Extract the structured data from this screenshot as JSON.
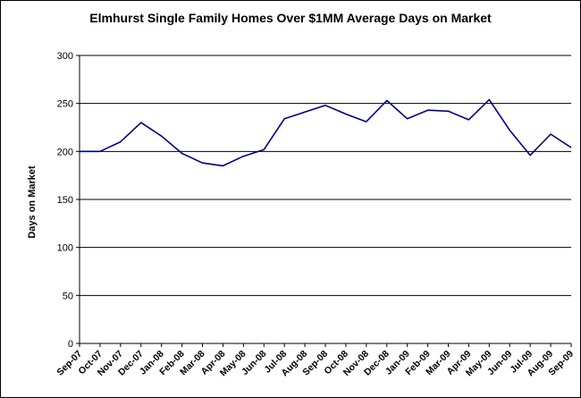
{
  "chart_data": {
    "type": "line",
    "title": "Elmhurst Single Family Homes Over $1MM Average Days on Market",
    "xlabel": "",
    "ylabel": "Days on Market",
    "ylim": [
      0,
      300
    ],
    "yticks": [
      0,
      50,
      100,
      150,
      200,
      250,
      300
    ],
    "grid": true,
    "legend": "none",
    "line_color": "#000080",
    "categories": [
      "Sep-07",
      "Oct-07",
      "Nov-07",
      "Dec-07",
      "Jan-08",
      "Feb-08",
      "Mar-08",
      "Apr-08",
      "May-08",
      "Jun-08",
      "Jul-08",
      "Aug-08",
      "Sep-08",
      "Oct-08",
      "Nov-08",
      "Dec-08",
      "Jan-09",
      "Feb-09",
      "Mar-09",
      "Apr-09",
      "May-09",
      "Jun-09",
      "Jul-09",
      "Aug-09",
      "Sep-09"
    ],
    "series": [
      {
        "values": [
          200,
          200,
          210,
          230,
          216,
          198,
          188,
          185,
          195,
          202,
          234,
          241,
          248,
          239,
          231,
          253,
          234,
          243,
          242,
          233,
          254,
          222,
          196,
          218,
          204
        ]
      }
    ]
  }
}
